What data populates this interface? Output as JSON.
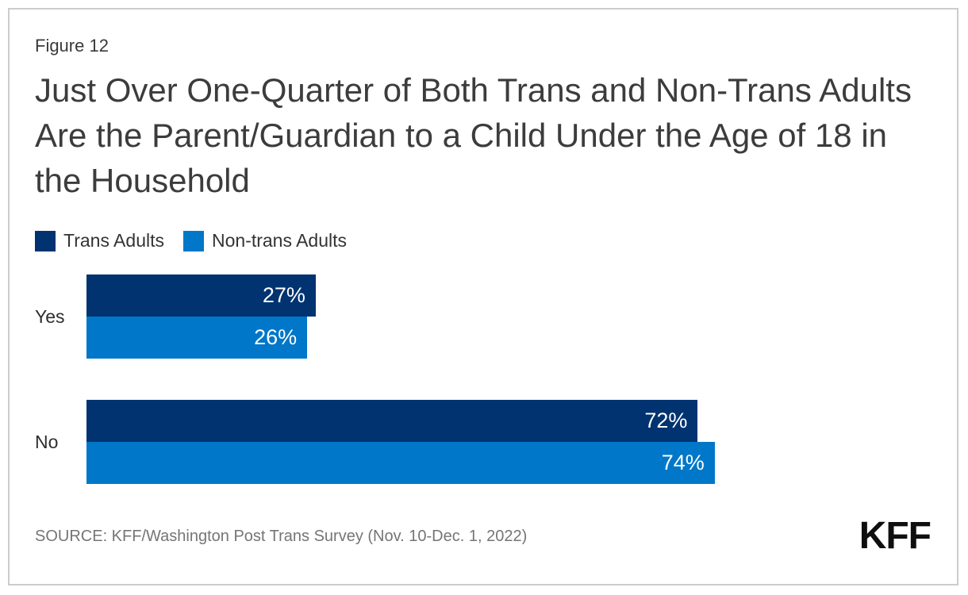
{
  "figure_label": "Figure 12",
  "title": "Just Over One-Quarter of Both Trans and Non-Trans Adults Are the Parent/Guardian to a Child Under the Age of 18 in the Household",
  "source": "SOURCE: KFF/Washington Post Trans Survey (Nov. 10-Dec. 1, 2022)",
  "logo_text": "KFF",
  "colors": {
    "trans_adults": "#003370",
    "non_trans_adults": "#0077C8",
    "bar_value_text": "#ffffff",
    "border": "#cccccc"
  },
  "chart_data": {
    "type": "bar",
    "orientation": "horizontal",
    "title": "Just Over One-Quarter of Both Trans and Non-Trans Adults Are the Parent/Guardian to a Child Under the Age of 18 in the Household",
    "categories": [
      "Yes",
      "No"
    ],
    "series": [
      {
        "name": "Trans Adults",
        "color": "#003370",
        "values": [
          27,
          72
        ]
      },
      {
        "name": "Non-trans Adults",
        "color": "#0077C8",
        "values": [
          26,
          74
        ]
      }
    ],
    "value_suffix": "%",
    "xlim": [
      0,
      100
    ],
    "grid": false,
    "legend_position": "top",
    "value_labels": "inside-end"
  }
}
